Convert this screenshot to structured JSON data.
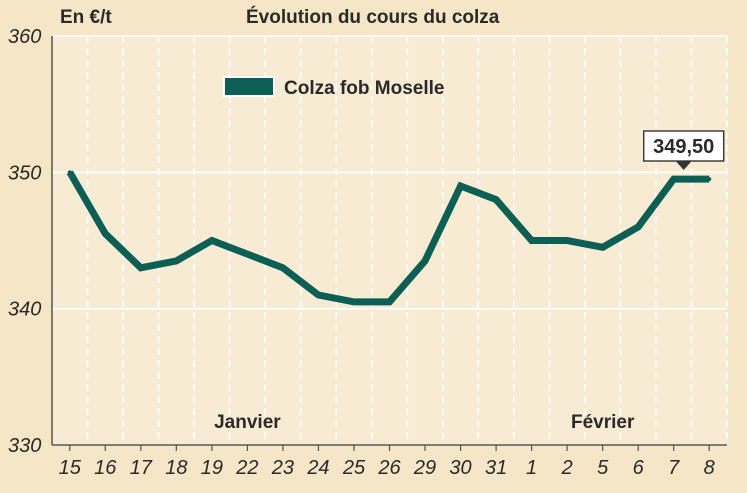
{
  "chart_data": {
    "type": "line",
    "title": "Évolution du cours du colza",
    "ylabel": "En €/t",
    "xlabel": "",
    "categories": [
      "15",
      "16",
      "17",
      "18",
      "19",
      "22",
      "23",
      "24",
      "25",
      "26",
      "29",
      "30",
      "31",
      "1",
      "2",
      "5",
      "6",
      "7",
      "8"
    ],
    "month_labels": [
      {
        "text": "Janvier",
        "category": "22"
      },
      {
        "text": "Février",
        "category": "5"
      }
    ],
    "series": [
      {
        "name": "Colza fob Moselle",
        "color": "#0c5f55",
        "values": [
          350,
          345.5,
          343,
          343.5,
          345,
          344,
          343,
          341,
          340.5,
          340.5,
          343.5,
          349,
          348,
          345,
          345,
          344.5,
          346,
          349.5,
          349.5
        ]
      }
    ],
    "yticks": [
      330,
      340,
      350,
      360
    ],
    "ylim": [
      330,
      360
    ],
    "grid": true,
    "legend_position": "top-left",
    "callout": {
      "text": "349,50",
      "category": "7"
    }
  }
}
